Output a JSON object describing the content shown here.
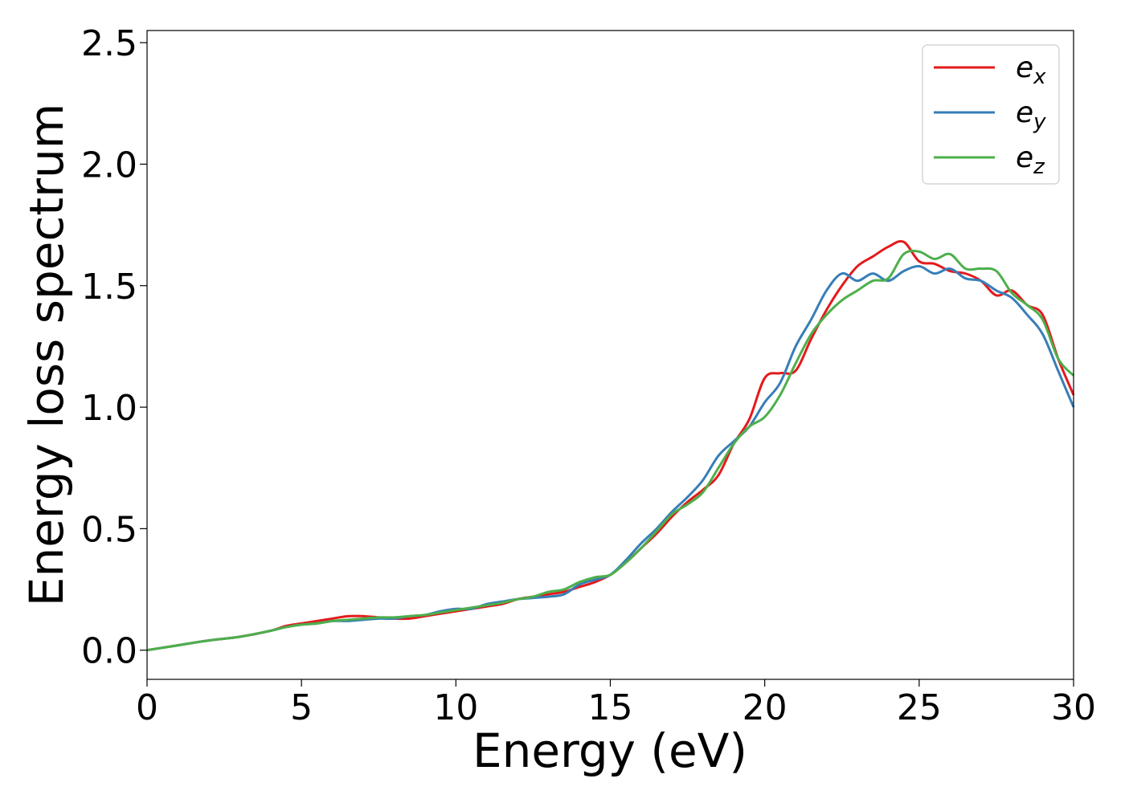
{
  "chart_data": {
    "type": "line",
    "title": "",
    "xlabel": "Energy (eV)",
    "ylabel": "Energy loss spectrum",
    "xlim": [
      0,
      30
    ],
    "ylim": [
      -0.12,
      2.55
    ],
    "xticks": [
      0,
      5,
      10,
      15,
      20,
      25,
      30
    ],
    "xtick_labels": [
      "0",
      "5",
      "10",
      "15",
      "20",
      "25",
      "30"
    ],
    "yticks": [
      0.0,
      0.5,
      1.0,
      1.5,
      2.0,
      2.5
    ],
    "ytick_labels": [
      "0.0",
      "0.5",
      "1.0",
      "1.5",
      "2.0",
      "2.5"
    ],
    "grid": false,
    "legend_position": "top-right",
    "x": [
      0,
      1,
      2,
      3,
      4,
      4.5,
      5,
      5.5,
      6,
      6.5,
      7,
      7.5,
      8,
      8.5,
      9,
      9.5,
      10,
      10.5,
      11,
      11.5,
      12,
      12.5,
      13,
      13.5,
      14,
      14.5,
      15,
      15.5,
      16,
      16.5,
      17,
      17.5,
      18,
      18.5,
      19,
      19.5,
      20,
      20.5,
      21,
      21.5,
      22,
      22.5,
      23,
      23.5,
      24,
      24.5,
      25,
      25.5,
      26,
      26.5,
      27,
      27.5,
      28,
      28.5,
      29,
      29.5,
      30
    ],
    "series": [
      {
        "name": "e",
        "subscript": "x",
        "color": "#e41a1c",
        "values": [
          0.0,
          0.02,
          0.04,
          0.055,
          0.08,
          0.1,
          0.11,
          0.12,
          0.13,
          0.14,
          0.14,
          0.135,
          0.13,
          0.13,
          0.14,
          0.15,
          0.16,
          0.17,
          0.18,
          0.19,
          0.21,
          0.22,
          0.23,
          0.24,
          0.26,
          0.28,
          0.31,
          0.36,
          0.42,
          0.48,
          0.55,
          0.61,
          0.66,
          0.72,
          0.85,
          0.95,
          1.12,
          1.14,
          1.15,
          1.28,
          1.4,
          1.5,
          1.58,
          1.62,
          1.66,
          1.68,
          1.6,
          1.59,
          1.56,
          1.55,
          1.52,
          1.46,
          1.48,
          1.42,
          1.38,
          1.2,
          1.05
        ]
      },
      {
        "name": "e",
        "subscript": "y",
        "color": "#377eb8",
        "values": [
          0.0,
          0.02,
          0.04,
          0.055,
          0.08,
          0.095,
          0.105,
          0.11,
          0.12,
          0.12,
          0.125,
          0.13,
          0.13,
          0.14,
          0.145,
          0.16,
          0.17,
          0.17,
          0.19,
          0.2,
          0.21,
          0.215,
          0.22,
          0.23,
          0.27,
          0.29,
          0.31,
          0.37,
          0.44,
          0.5,
          0.57,
          0.63,
          0.7,
          0.8,
          0.86,
          0.92,
          1.02,
          1.1,
          1.25,
          1.36,
          1.48,
          1.55,
          1.52,
          1.55,
          1.52,
          1.56,
          1.58,
          1.55,
          1.57,
          1.53,
          1.52,
          1.48,
          1.45,
          1.38,
          1.3,
          1.15,
          1.0
        ]
      },
      {
        "name": "e",
        "subscript": "z",
        "color": "#4daf4a",
        "values": [
          0.0,
          0.02,
          0.04,
          0.055,
          0.08,
          0.095,
          0.105,
          0.11,
          0.12,
          0.125,
          0.13,
          0.135,
          0.135,
          0.14,
          0.145,
          0.155,
          0.165,
          0.175,
          0.185,
          0.195,
          0.21,
          0.22,
          0.24,
          0.25,
          0.28,
          0.3,
          0.31,
          0.36,
          0.42,
          0.49,
          0.56,
          0.6,
          0.65,
          0.75,
          0.85,
          0.92,
          0.96,
          1.05,
          1.18,
          1.3,
          1.38,
          1.44,
          1.48,
          1.52,
          1.53,
          1.63,
          1.64,
          1.61,
          1.63,
          1.57,
          1.57,
          1.56,
          1.47,
          1.42,
          1.36,
          1.2,
          1.13
        ]
      }
    ]
  }
}
